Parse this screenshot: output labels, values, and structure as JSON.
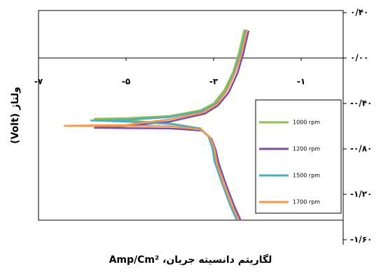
{
  "chart_data": {
    "type": "line",
    "x_label": "لگاریتم دانسیته جریان، Amp/Cm²",
    "y_label": "ولتاژ (Volt)",
    "xlim": [
      -7,
      0
    ],
    "ylim": [
      -1.6,
      0.4
    ],
    "xticks": [
      {
        "value": -7,
        "label": "-۷"
      },
      {
        "value": -5,
        "label": "-۵"
      },
      {
        "value": -3,
        "label": "-۳"
      },
      {
        "value": -1,
        "label": "-۱"
      }
    ],
    "yticks": [
      {
        "value": 0.4,
        "label": "۰/۴۰"
      },
      {
        "value": 0,
        "label": "۰/۰۰"
      },
      {
        "value": -0.4,
        "label": "-۰/۴۰"
      },
      {
        "value": -0.8,
        "label": "-۰/۸۰"
      },
      {
        "value": -1.2,
        "label": "-۱/۲۰"
      },
      {
        "value": -1.6,
        "label": "-۱/۶۰"
      }
    ],
    "series": [
      {
        "name": "1000 rpm",
        "color": "#8fc04f",
        "x": [
          -2.45,
          -2.6,
          -2.78,
          -2.95,
          -3.0,
          -3.1,
          -3.3,
          -4.0,
          -5.0,
          -5.72,
          -5.0,
          -4.0,
          -3.3,
          -3.0,
          -2.75,
          -2.55,
          -2.42,
          -2.3
        ],
        "values": [
          -1.42,
          -1.3,
          -1.12,
          -0.92,
          -0.8,
          -0.7,
          -0.62,
          -0.575,
          -0.55,
          -0.535,
          -0.53,
          -0.51,
          -0.46,
          -0.4,
          -0.28,
          -0.12,
          0.05,
          0.25
        ]
      },
      {
        "name": "1200 rpm",
        "color": "#7b4fa6",
        "x": [
          -2.38,
          -2.52,
          -2.7,
          -2.88,
          -2.95,
          -3.05,
          -3.25,
          -4.0,
          -5.0,
          -5.72,
          -5.0,
          -4.0,
          -3.2,
          -2.9,
          -2.65,
          -2.45,
          -2.32,
          -2.2
        ],
        "values": [
          -1.43,
          -1.31,
          -1.13,
          -0.93,
          -0.81,
          -0.71,
          -0.64,
          -0.62,
          -0.618,
          -0.615,
          -0.6,
          -0.56,
          -0.49,
          -0.42,
          -0.3,
          -0.13,
          0.04,
          0.24
        ]
      },
      {
        "name": "1500 rpm",
        "color": "#4bacc6",
        "x": [
          -2.48,
          -2.63,
          -2.8,
          -2.98,
          -3.03,
          -3.12,
          -3.32,
          -4.0,
          -5.0,
          -5.8,
          -5.0,
          -4.0,
          -3.28,
          -2.97,
          -2.72,
          -2.52,
          -2.38,
          -2.26
        ],
        "values": [
          -1.42,
          -1.29,
          -1.11,
          -0.91,
          -0.79,
          -0.69,
          -0.62,
          -0.58,
          -0.56,
          -0.55,
          -0.545,
          -0.52,
          -0.47,
          -0.41,
          -0.29,
          -0.12,
          0.05,
          0.25
        ]
      },
      {
        "name": "1700 rpm",
        "color": "#f79646",
        "x": [
          -2.43,
          -2.58,
          -2.76,
          -2.93,
          -2.98,
          -3.08,
          -3.28,
          -4.0,
          -5.0,
          -6.41,
          -5.0,
          -4.0,
          -3.25,
          -2.93,
          -2.7,
          -2.5,
          -2.35,
          -2.24
        ],
        "values": [
          -1.42,
          -1.3,
          -1.12,
          -0.92,
          -0.8,
          -0.7,
          -0.63,
          -0.6,
          -0.598,
          -0.597,
          -0.59,
          -0.54,
          -0.48,
          -0.41,
          -0.29,
          -0.12,
          0.05,
          0.25
        ]
      }
    ]
  }
}
